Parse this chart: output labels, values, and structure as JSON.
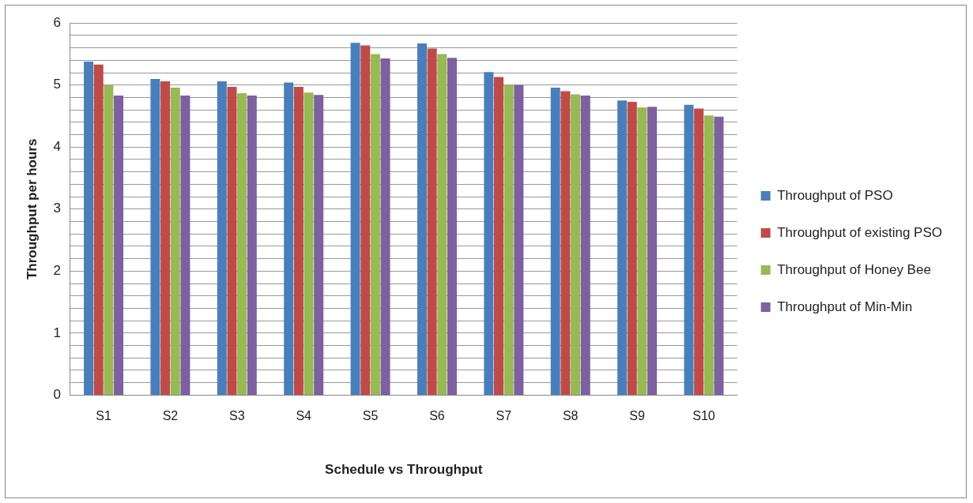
{
  "chart_data": {
    "type": "bar",
    "xlabel": "Schedule vs Throughput",
    "ylabel": "Throughput per hours",
    "categories": [
      "S1",
      "S2",
      "S3",
      "S4",
      "S5",
      "S6",
      "S7",
      "S8",
      "S9",
      "S10"
    ],
    "series": [
      {
        "name": "Throughput of PSO",
        "color": "#4a7ebb",
        "values": [
          5.38,
          5.1,
          5.06,
          5.04,
          5.68,
          5.67,
          5.21,
          4.96,
          4.75,
          4.68
        ]
      },
      {
        "name": "Throughput of existing PSO",
        "color": "#be4b48",
        "values": [
          5.33,
          5.06,
          4.97,
          4.97,
          5.64,
          5.59,
          5.13,
          4.9,
          4.73,
          4.62
        ]
      },
      {
        "name": "Throughput of Honey Bee",
        "color": "#98b954",
        "values": [
          5.0,
          4.96,
          4.87,
          4.88,
          5.5,
          5.5,
          5.0,
          4.85,
          4.64,
          4.51
        ]
      },
      {
        "name": "Throughput of Min-Min",
        "color": "#7d60a0",
        "values": [
          4.83,
          4.83,
          4.83,
          4.84,
          5.43,
          5.44,
          5.0,
          4.83,
          4.65,
          4.49
        ]
      }
    ],
    "ylim": [
      0,
      6
    ],
    "yticks": [
      0,
      {
        "value": 0.2,
        "label": null
      },
      {
        "value": 0.4,
        "label": null
      },
      {
        "value": 0.6,
        "label": null
      },
      {
        "value": 0.8,
        "label": null
      },
      1,
      {
        "value": 1.2,
        "label": null
      },
      {
        "value": 1.4,
        "label": null
      },
      {
        "value": 1.6,
        "label": null
      },
      {
        "value": 1.8,
        "label": null
      },
      2,
      {
        "value": 2.2,
        "label": null
      },
      {
        "value": 2.4,
        "label": null
      },
      {
        "value": 2.6,
        "label": null
      },
      {
        "value": 2.8,
        "label": null
      },
      3,
      {
        "value": 3.2,
        "label": null
      },
      {
        "value": 3.4,
        "label": null
      },
      {
        "value": 3.6,
        "label": null
      },
      {
        "value": 3.8,
        "label": null
      },
      4,
      {
        "value": 4.2,
        "label": null
      },
      {
        "value": 4.4,
        "label": null
      },
      {
        "value": 4.6,
        "label": null
      },
      {
        "value": 4.8,
        "label": null
      },
      5,
      {
        "value": 5.2,
        "label": null
      },
      {
        "value": 5.4,
        "label": null
      },
      {
        "value": 5.6,
        "label": null
      },
      {
        "value": 5.8,
        "label": null
      },
      6
    ],
    "grid": "y",
    "legend": "right"
  }
}
